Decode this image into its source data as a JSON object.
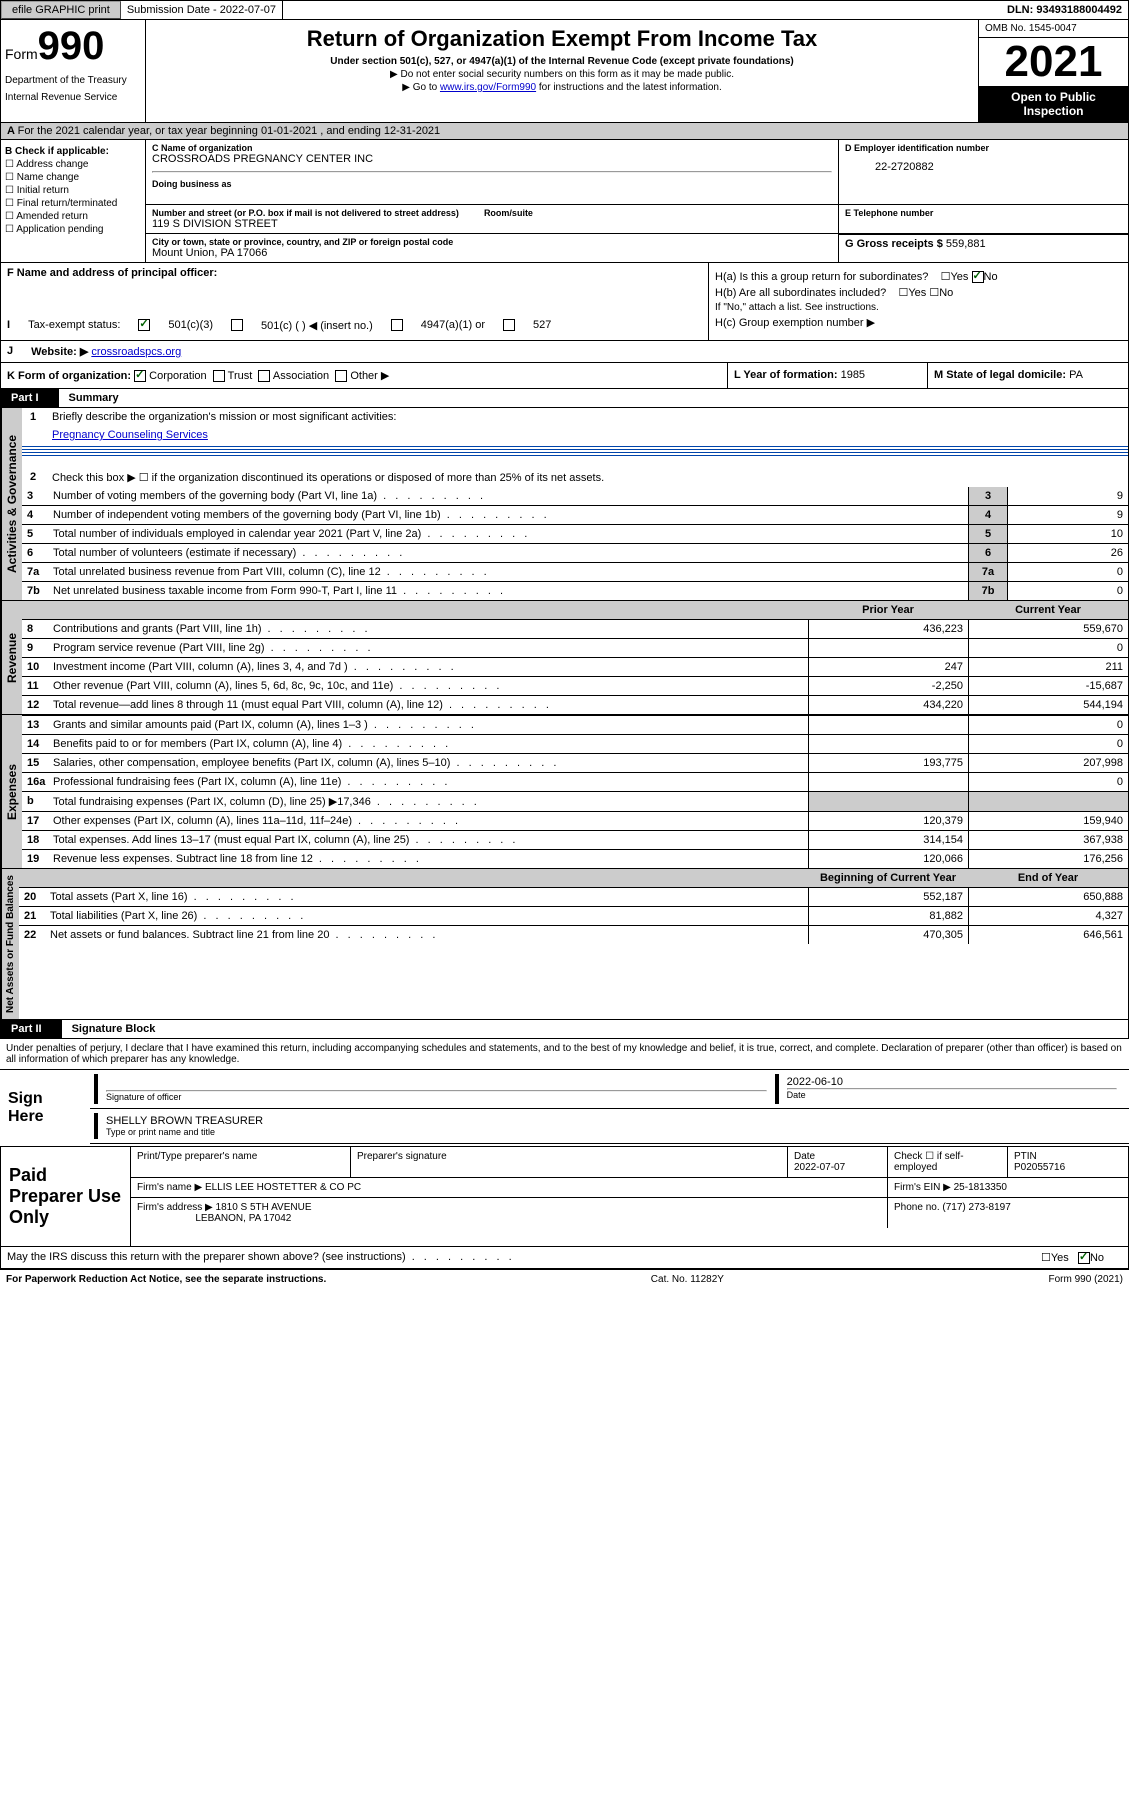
{
  "topbar": {
    "efile": "efile GRAPHIC print",
    "sub_label": "Submission Date - 2022-07-07",
    "dln": "DLN: 93493188004492"
  },
  "header": {
    "form_word": "Form",
    "form_num": "990",
    "dept": "Department of the Treasury",
    "irs": "Internal Revenue Service",
    "title": "Return of Organization Exempt From Income Tax",
    "sub": "Under section 501(c), 527, or 4947(a)(1) of the Internal Revenue Code (except private foundations)",
    "warn": "▶ Do not enter social security numbers on this form as it may be made public.",
    "goto": "▶ Go to www.irs.gov/Form990 for instructions and the latest information.",
    "goto_link": "www.irs.gov/Form990",
    "omb": "OMB No. 1545-0047",
    "year": "2021",
    "open": "Open to Public Inspection"
  },
  "A": {
    "text": "For the 2021 calendar year, or tax year beginning 01-01-2021   , and ending 12-31-2021"
  },
  "B": {
    "label": "B Check if applicable:",
    "items": [
      "Address change",
      "Name change",
      "Initial return",
      "Final return/terminated",
      "Amended return",
      "Application pending"
    ]
  },
  "C": {
    "name_label": "C Name of organization",
    "name": "CROSSROADS PREGNANCY CENTER INC",
    "dba_label": "Doing business as",
    "addr_label": "Number and street (or P.O. box if mail is not delivered to street address)",
    "room_label": "Room/suite",
    "addr": "119 S DIVISION STREET",
    "city_label": "City or town, state or province, country, and ZIP or foreign postal code",
    "city": "Mount Union, PA  17066"
  },
  "D": {
    "label": "D Employer identification number",
    "val": "22-2720882"
  },
  "E": {
    "label": "E Telephone number",
    "val": ""
  },
  "G": {
    "label": "G Gross receipts $",
    "val": "559,881"
  },
  "F": {
    "label": "F  Name and address of principal officer:"
  },
  "H": {
    "a": "H(a)  Is this a group return for subordinates?",
    "b": "H(b)  Are all subordinates included?",
    "b_note": "If \"No,\" attach a list. See instructions.",
    "c": "H(c)  Group exemption number ▶",
    "yes": "Yes",
    "no": "No"
  },
  "I": {
    "label": "Tax-exempt status:",
    "o1": "501(c)(3)",
    "o2": "501(c) (    ) ◀ (insert no.)",
    "o3": "4947(a)(1) or",
    "o4": "527"
  },
  "J": {
    "label": "Website: ▶",
    "val": "crossroadspcs.org"
  },
  "K": {
    "label": "K Form of organization:",
    "corp": "Corporation",
    "trust": "Trust",
    "assoc": "Association",
    "other": "Other ▶"
  },
  "L": {
    "label": "L Year of formation:",
    "val": "1985"
  },
  "M": {
    "label": "M State of legal domicile:",
    "val": "PA"
  },
  "part1": {
    "hdr": "Part I",
    "title": "Summary"
  },
  "gov": {
    "side": "Activities & Governance",
    "l1": "Briefly describe the organization's mission or most significant activities:",
    "l1v": "Pregnancy Counseling Services",
    "l2": "Check this box ▶ ☐  if the organization discontinued its operations or disposed of more than 25% of its net assets.",
    "rows": [
      {
        "n": "3",
        "t": "Number of voting members of the governing body (Part VI, line 1a)",
        "v": "9"
      },
      {
        "n": "4",
        "t": "Number of independent voting members of the governing body (Part VI, line 1b)",
        "v": "9"
      },
      {
        "n": "5",
        "t": "Total number of individuals employed in calendar year 2021 (Part V, line 2a)",
        "v": "10"
      },
      {
        "n": "6",
        "t": "Total number of volunteers (estimate if necessary)",
        "v": "26"
      },
      {
        "n": "7a",
        "t": "Total unrelated business revenue from Part VIII, column (C), line 12",
        "v": "0"
      },
      {
        "n": "7b",
        "t": "Net unrelated business taxable income from Form 990-T, Part I, line 11",
        "v": "0"
      }
    ]
  },
  "cols": {
    "prior": "Prior Year",
    "current": "Current Year",
    "boy": "Beginning of Current Year",
    "eoy": "End of Year"
  },
  "rev": {
    "side": "Revenue",
    "rows": [
      {
        "n": "8",
        "t": "Contributions and grants (Part VIII, line 1h)",
        "p": "436,223",
        "c": "559,670"
      },
      {
        "n": "9",
        "t": "Program service revenue (Part VIII, line 2g)",
        "p": "",
        "c": "0"
      },
      {
        "n": "10",
        "t": "Investment income (Part VIII, column (A), lines 3, 4, and 7d )",
        "p": "247",
        "c": "211"
      },
      {
        "n": "11",
        "t": "Other revenue (Part VIII, column (A), lines 5, 6d, 8c, 9c, 10c, and 11e)",
        "p": "-2,250",
        "c": "-15,687"
      },
      {
        "n": "12",
        "t": "Total revenue—add lines 8 through 11 (must equal Part VIII, column (A), line 12)",
        "p": "434,220",
        "c": "544,194"
      }
    ]
  },
  "exp": {
    "side": "Expenses",
    "rows": [
      {
        "n": "13",
        "t": "Grants and similar amounts paid (Part IX, column (A), lines 1–3 )",
        "p": "",
        "c": "0"
      },
      {
        "n": "14",
        "t": "Benefits paid to or for members (Part IX, column (A), line 4)",
        "p": "",
        "c": "0"
      },
      {
        "n": "15",
        "t": "Salaries, other compensation, employee benefits (Part IX, column (A), lines 5–10)",
        "p": "193,775",
        "c": "207,998"
      },
      {
        "n": "16a",
        "t": "Professional fundraising fees (Part IX, column (A), line 11e)",
        "p": "",
        "c": "0"
      },
      {
        "n": "b",
        "t": "Total fundraising expenses (Part IX, column (D), line 25) ▶17,346",
        "p": "shade",
        "c": "shade"
      },
      {
        "n": "17",
        "t": "Other expenses (Part IX, column (A), lines 11a–11d, 11f–24e)",
        "p": "120,379",
        "c": "159,940"
      },
      {
        "n": "18",
        "t": "Total expenses. Add lines 13–17 (must equal Part IX, column (A), line 25)",
        "p": "314,154",
        "c": "367,938"
      },
      {
        "n": "19",
        "t": "Revenue less expenses. Subtract line 18 from line 12",
        "p": "120,066",
        "c": "176,256"
      }
    ]
  },
  "net": {
    "side": "Net Assets or Fund Balances",
    "rows": [
      {
        "n": "20",
        "t": "Total assets (Part X, line 16)",
        "p": "552,187",
        "c": "650,888"
      },
      {
        "n": "21",
        "t": "Total liabilities (Part X, line 26)",
        "p": "81,882",
        "c": "4,327"
      },
      {
        "n": "22",
        "t": "Net assets or fund balances. Subtract line 21 from line 20",
        "p": "470,305",
        "c": "646,561"
      }
    ]
  },
  "part2": {
    "hdr": "Part II",
    "title": "Signature Block"
  },
  "sig": {
    "decl": "Under penalties of perjury, I declare that I have examined this return, including accompanying schedules and statements, and to the best of my knowledge and belief, it is true, correct, and complete. Declaration of preparer (other than officer) is based on all information of which preparer has any knowledge.",
    "here": "Sign Here",
    "date": "2022-06-10",
    "sig_label": "Signature of officer",
    "date_label": "Date",
    "name": "SHELLY BROWN  TREASURER",
    "name_label": "Type or print name and title"
  },
  "paid": {
    "left": "Paid Preparer Use Only",
    "h1": "Print/Type preparer's name",
    "h2": "Preparer's signature",
    "h3": "Date",
    "h3v": "2022-07-07",
    "h4": "Check ☐ if self-employed",
    "h5": "PTIN",
    "h5v": "P02055716",
    "firm_label": "Firm's name   ▶",
    "firm": "ELLIS LEE HOSTETTER & CO PC",
    "ein_label": "Firm's EIN ▶",
    "ein": "25-1813350",
    "addr_label": "Firm's address ▶",
    "addr1": "1810 S 5TH AVENUE",
    "addr2": "LEBANON, PA  17042",
    "phone_label": "Phone no.",
    "phone": "(717) 273-8197"
  },
  "discuss": {
    "txt": "May the IRS discuss this return with the preparer shown above? (see instructions)",
    "yes": "Yes",
    "no": "No"
  },
  "footer": {
    "pra": "For Paperwork Reduction Act Notice, see the separate instructions.",
    "cat": "Cat. No. 11282Y",
    "form": "Form 990 (2021)"
  }
}
